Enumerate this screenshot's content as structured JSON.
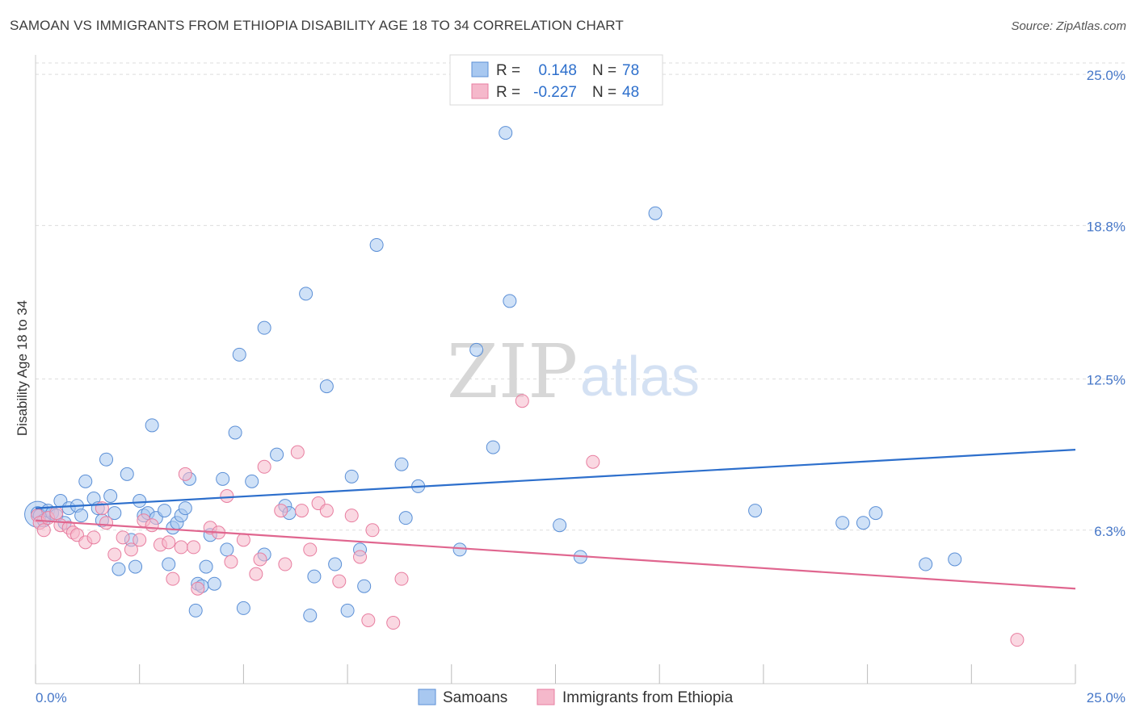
{
  "title": "SAMOAN VS IMMIGRANTS FROM ETHIOPIA DISABILITY AGE 18 TO 34 CORRELATION CHART",
  "source": "Source: ZipAtlas.com",
  "watermark": {
    "zip": "ZIP",
    "atlas": "atlas"
  },
  "colors": {
    "blue_fill": "#a8c8f0",
    "blue_stroke": "#5b8fd6",
    "blue_line": "#2d6fcc",
    "pink_fill": "#f5b8cb",
    "pink_stroke": "#e87ea0",
    "pink_line": "#e0668f",
    "tick_text": "#4677c8",
    "grid": "#dddddd"
  },
  "legend": {
    "rows": [
      {
        "r_label": "R =",
        "r_value": "0.148",
        "n_label": "N =",
        "n_value": "78"
      },
      {
        "r_label": "R =",
        "r_value": "-0.227",
        "n_label": "N =",
        "n_value": "48"
      }
    ]
  },
  "chart_data": {
    "type": "scatter",
    "title": "SAMOAN VS IMMIGRANTS FROM ETHIOPIA DISABILITY AGE 18 TO 34 CORRELATION CHART",
    "xlabel": "",
    "ylabel": "Disability Age 18 to 34",
    "xlim": [
      0,
      25
    ],
    "ylim": [
      0,
      25.6
    ],
    "x_tick_labels": [
      "0.0%",
      "25.0%"
    ],
    "y_ticks": [
      6.3,
      12.5,
      18.8,
      25.0
    ],
    "y_tick_labels": [
      "6.3%",
      "12.5%",
      "18.8%",
      "25.0%"
    ],
    "grid": true,
    "legend_position": "bottom",
    "series": [
      {
        "name": "Samoans",
        "r": 0.148,
        "n": 78,
        "trend": {
          "x": [
            0,
            25
          ],
          "y": [
            7.2,
            9.6
          ]
        },
        "points": [
          [
            0.05,
            7.0
          ],
          [
            0.1,
            6.9
          ],
          [
            0.2,
            6.7
          ],
          [
            0.3,
            7.1
          ],
          [
            0.4,
            7.0
          ],
          [
            0.5,
            6.9
          ],
          [
            0.6,
            7.5
          ],
          [
            0.7,
            6.6
          ],
          [
            0.8,
            7.2
          ],
          [
            1.0,
            7.3
          ],
          [
            1.1,
            6.9
          ],
          [
            1.2,
            8.3
          ],
          [
            1.4,
            7.6
          ],
          [
            1.5,
            7.2
          ],
          [
            1.6,
            6.7
          ],
          [
            1.7,
            9.2
          ],
          [
            1.8,
            7.7
          ],
          [
            1.9,
            7.0
          ],
          [
            2.0,
            4.7
          ],
          [
            2.2,
            8.6
          ],
          [
            2.3,
            5.9
          ],
          [
            2.4,
            4.8
          ],
          [
            2.5,
            7.5
          ],
          [
            2.6,
            6.9
          ],
          [
            2.7,
            7.0
          ],
          [
            2.8,
            10.6
          ],
          [
            2.9,
            6.8
          ],
          [
            3.1,
            7.1
          ],
          [
            3.2,
            4.9
          ],
          [
            3.3,
            6.4
          ],
          [
            3.4,
            6.6
          ],
          [
            3.5,
            6.9
          ],
          [
            3.6,
            7.2
          ],
          [
            3.7,
            8.4
          ],
          [
            3.85,
            3.0
          ],
          [
            3.9,
            4.1
          ],
          [
            4.0,
            4.0
          ],
          [
            4.1,
            4.8
          ],
          [
            4.2,
            6.1
          ],
          [
            4.3,
            4.1
          ],
          [
            4.5,
            8.4
          ],
          [
            4.6,
            5.5
          ],
          [
            4.8,
            10.3
          ],
          [
            4.9,
            13.5
          ],
          [
            5.0,
            3.1
          ],
          [
            5.2,
            8.3
          ],
          [
            5.5,
            5.3
          ],
          [
            5.5,
            14.6
          ],
          [
            5.8,
            9.4
          ],
          [
            6.0,
            7.3
          ],
          [
            6.1,
            7.0
          ],
          [
            6.5,
            16.0
          ],
          [
            6.6,
            2.8
          ],
          [
            6.7,
            4.4
          ],
          [
            7.0,
            12.2
          ],
          [
            7.2,
            4.9
          ],
          [
            7.5,
            3.0
          ],
          [
            7.6,
            8.5
          ],
          [
            7.8,
            5.5
          ],
          [
            7.9,
            4.0
          ],
          [
            8.2,
            18.0
          ],
          [
            8.8,
            9.0
          ],
          [
            8.9,
            6.8
          ],
          [
            9.2,
            8.1
          ],
          [
            10.2,
            5.5
          ],
          [
            10.6,
            13.7
          ],
          [
            11.0,
            9.7
          ],
          [
            11.3,
            22.6
          ],
          [
            11.4,
            15.7
          ],
          [
            12.6,
            6.5
          ],
          [
            13.1,
            5.2
          ],
          [
            14.9,
            19.3
          ],
          [
            17.3,
            7.1
          ],
          [
            19.4,
            6.6
          ],
          [
            19.9,
            6.6
          ],
          [
            20.2,
            7.0
          ],
          [
            21.4,
            4.9
          ],
          [
            22.1,
            5.1
          ]
        ]
      },
      {
        "name": "Immigrants from Ethiopia",
        "r": -0.227,
        "n": 48,
        "trend": {
          "x": [
            0,
            25
          ],
          "y": [
            6.7,
            3.9
          ]
        },
        "points": [
          [
            0.05,
            6.9
          ],
          [
            0.1,
            6.6
          ],
          [
            0.2,
            6.3
          ],
          [
            0.3,
            6.8
          ],
          [
            0.5,
            7.0
          ],
          [
            0.6,
            6.5
          ],
          [
            0.8,
            6.4
          ],
          [
            0.9,
            6.2
          ],
          [
            1.0,
            6.1
          ],
          [
            1.2,
            5.8
          ],
          [
            1.4,
            6.0
          ],
          [
            1.6,
            7.2
          ],
          [
            1.7,
            6.6
          ],
          [
            1.9,
            5.3
          ],
          [
            2.1,
            6.0
          ],
          [
            2.3,
            5.5
          ],
          [
            2.5,
            5.9
          ],
          [
            2.6,
            6.7
          ],
          [
            2.8,
            6.5
          ],
          [
            3.0,
            5.7
          ],
          [
            3.2,
            5.8
          ],
          [
            3.3,
            4.3
          ],
          [
            3.5,
            5.6
          ],
          [
            3.6,
            8.6
          ],
          [
            3.8,
            5.6
          ],
          [
            3.9,
            3.9
          ],
          [
            4.2,
            6.4
          ],
          [
            4.4,
            6.2
          ],
          [
            4.6,
            7.7
          ],
          [
            4.7,
            5.0
          ],
          [
            5.0,
            5.9
          ],
          [
            5.3,
            4.5
          ],
          [
            5.4,
            5.1
          ],
          [
            5.5,
            8.9
          ],
          [
            5.9,
            7.1
          ],
          [
            6.0,
            4.9
          ],
          [
            6.3,
            9.5
          ],
          [
            6.4,
            7.1
          ],
          [
            6.6,
            5.5
          ],
          [
            6.8,
            7.4
          ],
          [
            7.0,
            7.1
          ],
          [
            7.3,
            4.2
          ],
          [
            7.6,
            6.9
          ],
          [
            7.8,
            5.2
          ],
          [
            8.0,
            2.6
          ],
          [
            8.1,
            6.3
          ],
          [
            8.6,
            2.5
          ],
          [
            8.8,
            4.3
          ]
        ],
        "extra_points": [
          [
            11.7,
            11.6
          ],
          [
            13.4,
            9.1
          ],
          [
            23.6,
            1.8
          ]
        ]
      }
    ]
  },
  "bottom_legend": [
    "Samoans",
    "Immigrants from Ethiopia"
  ]
}
